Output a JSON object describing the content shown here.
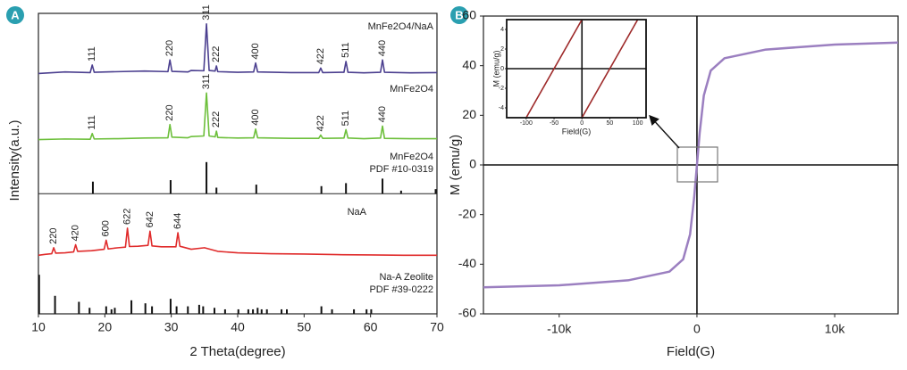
{
  "chart_data": [
    {
      "type": "line",
      "label": "A",
      "x_label": "2 Theta(degree)",
      "y_label": "Intensity(a.u.)",
      "xlim": [
        10,
        70
      ],
      "xticks": [
        10,
        20,
        30,
        40,
        50,
        60,
        70
      ],
      "ylim": [
        0,
        100
      ],
      "series": [
        {
          "name": "MnFe2O4/NaA",
          "color": "#4b3f8f",
          "x": [
            10,
            14,
            17.8,
            18.1,
            18.4,
            22,
            26,
            29.5,
            29.8,
            30.1,
            32.5,
            33,
            34.9,
            35.3,
            35.7,
            36.6,
            36.8,
            37.0,
            40,
            42.4,
            42.7,
            43.0,
            48,
            52.2,
            52.5,
            52.8,
            56.0,
            56.3,
            56.6,
            59,
            61.5,
            61.8,
            62.1,
            66,
            70
          ],
          "values": [
            80,
            80.5,
            80.3,
            82.8,
            80.4,
            80.6,
            80.8,
            80.6,
            84.5,
            80.7,
            80.5,
            81,
            80.9,
            96.5,
            81,
            80.8,
            82.5,
            80.6,
            80.4,
            80.5,
            83.5,
            80.5,
            80.3,
            80.3,
            81.8,
            80.3,
            80.4,
            84,
            80.4,
            80.2,
            80.4,
            84.5,
            80.4,
            80.2,
            80.3
          ],
          "peaks": [
            {
              "label": "111",
              "x": 18.1
            },
            {
              "label": "220",
              "x": 29.8
            },
            {
              "label": "311",
              "x": 35.3
            },
            {
              "label": "222",
              "x": 36.8
            },
            {
              "label": "400",
              "x": 42.7
            },
            {
              "label": "422",
              "x": 52.5
            },
            {
              "label": "511",
              "x": 56.3
            },
            {
              "label": "440",
              "x": 61.8
            }
          ]
        },
        {
          "name": "MnFe2O4",
          "color": "#6cbf3a",
          "x": [
            10,
            14,
            17.8,
            18.1,
            18.4,
            22,
            26,
            29.5,
            29.8,
            30.1,
            32.5,
            33,
            34.9,
            35.3,
            35.7,
            36.6,
            36.8,
            37.0,
            40,
            42.4,
            42.7,
            43.0,
            48,
            52.2,
            52.5,
            52.8,
            56.0,
            56.3,
            56.6,
            59,
            61.5,
            61.8,
            62.1,
            66,
            70
          ],
          "values": [
            58,
            58.2,
            58.1,
            60,
            58.2,
            58.3,
            58.5,
            58.6,
            63,
            58.8,
            58.6,
            59,
            59.2,
            73.5,
            59.2,
            58.9,
            60.8,
            58.7,
            58.5,
            58.6,
            61.5,
            58.6,
            58.4,
            58.4,
            59.5,
            58.4,
            58.5,
            61.3,
            58.5,
            58.3,
            58.5,
            62.5,
            58.4,
            58.3,
            58.3
          ],
          "peaks": [
            {
              "label": "111",
              "x": 18.1
            },
            {
              "label": "220",
              "x": 29.8
            },
            {
              "label": "311",
              "x": 35.3
            },
            {
              "label": "222",
              "x": 36.8
            },
            {
              "label": "400",
              "x": 42.7
            },
            {
              "label": "422",
              "x": 52.5
            },
            {
              "label": "511",
              "x": 56.3
            },
            {
              "label": "440",
              "x": 61.8
            }
          ]
        },
        {
          "name": "NaA",
          "color": "#e02b2b",
          "x": [
            10,
            11,
            12,
            12.3,
            12.6,
            14,
            15.3,
            15.6,
            15.9,
            18,
            19.9,
            20.2,
            20.5,
            22,
            23.1,
            23.4,
            23.7,
            25,
            26.5,
            26.8,
            27.1,
            28.5,
            30.7,
            31.0,
            31.3,
            33,
            35,
            37,
            40,
            45,
            50,
            55,
            60,
            65,
            70
          ],
          "values": [
            19.5,
            19.8,
            20,
            22,
            20.2,
            20.3,
            20.6,
            23,
            20.8,
            21,
            21.5,
            24.5,
            21.6,
            22,
            22.2,
            28.5,
            22.4,
            22.5,
            22.8,
            27.5,
            22.6,
            22.3,
            22.3,
            27,
            22.5,
            21.5,
            22,
            20.8,
            20.3,
            20,
            19.9,
            19.7,
            19.6,
            19.5,
            19.5
          ],
          "peaks": [
            {
              "label": "220",
              "x": 12.3
            },
            {
              "label": "420",
              "x": 15.6
            },
            {
              "label": "600",
              "x": 20.2
            },
            {
              "label": "622",
              "x": 23.4
            },
            {
              "label": "642",
              "x": 26.8
            },
            {
              "label": "644",
              "x": 31.0
            }
          ]
        }
      ],
      "references": [
        {
          "name": [
            "MnFe2O4",
            "PDF #10-0319"
          ],
          "baseline": 40,
          "positions": [
            18.2,
            29.9,
            35.3,
            36.8,
            42.8,
            52.6,
            56.3,
            61.8,
            64.6,
            69.8
          ],
          "values": [
            4,
            4.5,
            10.5,
            2,
            3,
            2.5,
            3.5,
            5,
            1,
            1.5
          ]
        },
        {
          "name": [
            "Na-A Zeolite",
            "PDF #39-0222"
          ],
          "baseline": 0,
          "positions": [
            10.1,
            12.5,
            16.1,
            17.7,
            20.2,
            21.0,
            21.5,
            24.0,
            26.1,
            27.1,
            29.9,
            30.8,
            32.5,
            34.2,
            34.8,
            36.5,
            38.1,
            40.1,
            41.6,
            42.3,
            43.0,
            43.6,
            44.4,
            46.6,
            47.4,
            52.6,
            54.2,
            57.5,
            59.4,
            60.1
          ],
          "values": [
            13,
            6,
            4,
            2,
            2.5,
            1.5,
            2,
            4.5,
            3.5,
            2.5,
            5,
            2.5,
            2.5,
            3,
            2.5,
            2,
            1.5,
            1.5,
            1.5,
            1.5,
            2,
            1.5,
            1.5,
            1.5,
            1.5,
            2.5,
            1.5,
            1.5,
            1.5,
            1.5
          ]
        }
      ]
    },
    {
      "type": "line",
      "label": "B",
      "x_label": "Field(G)",
      "y_label": "M (emu/g)",
      "xlim": [
        -15500,
        14600
      ],
      "xticks": [
        {
          "value": -10000,
          "label": "-10k"
        },
        0,
        {
          "value": 10000,
          "label": "10k"
        }
      ],
      "ylim": [
        -60,
        60
      ],
      "yticks": [
        -60,
        -40,
        -20,
        0,
        20,
        40,
        60
      ],
      "series": [
        {
          "color": "#9b7fc0",
          "x": [
            -15500,
            -10000,
            -5000,
            -2000,
            -1000,
            -500,
            -200,
            0,
            200,
            500,
            1000,
            2000,
            5000,
            10000,
            14600
          ],
          "values": [
            -49.3,
            -48.5,
            -46.5,
            -43,
            -38,
            -28,
            -13,
            0,
            13,
            28,
            38,
            43,
            46.5,
            48.5,
            49.3
          ]
        }
      ],
      "inset": {
        "x_label": "Field(G)",
        "y_label": "M (emu/g)",
        "xlim": [
          -135,
          115
        ],
        "xticks": [
          -100,
          -50,
          0,
          50,
          100
        ],
        "ylim": [
          -5,
          5
        ],
        "yticks": [
          -4,
          -2,
          0,
          2,
          4
        ],
        "series": [
          {
            "color": "#9e2a2a",
            "x": [
              -100,
              0
            ],
            "values": [
              -5,
              5
            ]
          },
          {
            "color": "#9e2a2a",
            "x": [
              0,
              100
            ],
            "values": [
              -5,
              5
            ]
          }
        ]
      }
    }
  ]
}
